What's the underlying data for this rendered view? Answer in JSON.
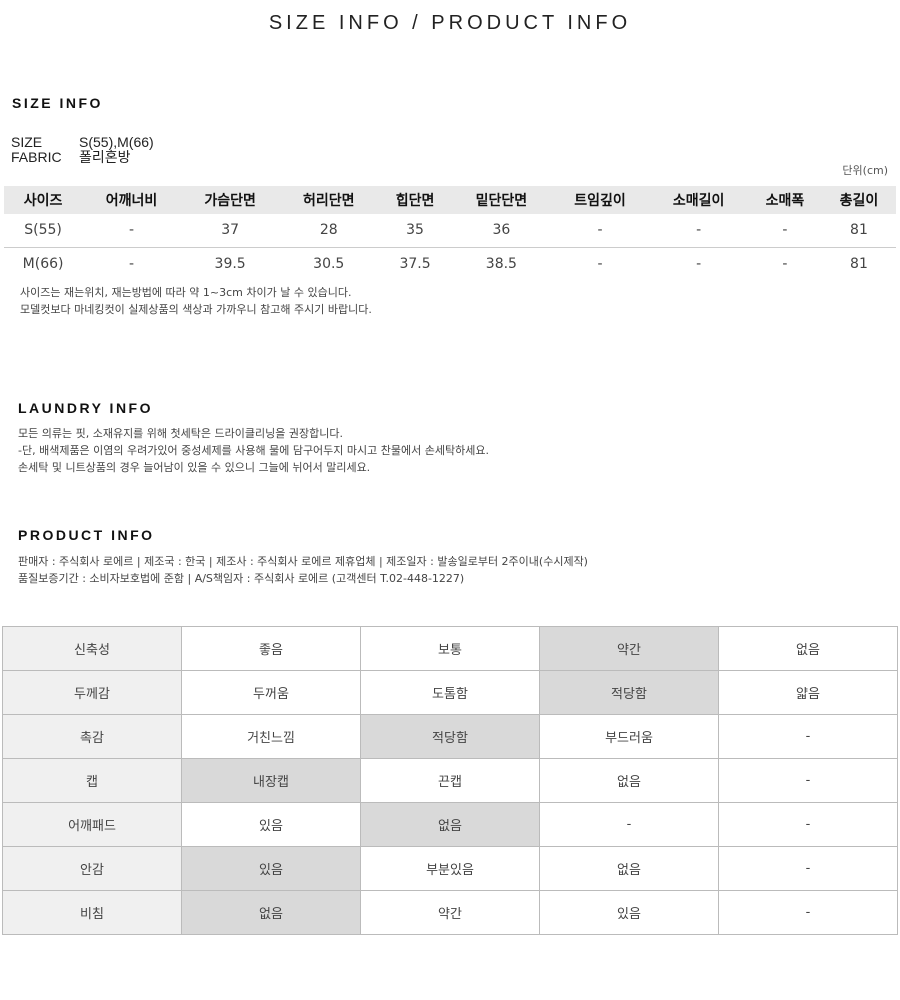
{
  "title": "SIZE INFO / PRODUCT INFO",
  "size_info": {
    "heading": "SIZE INFO",
    "size_label": "SIZE",
    "size_value": "S(55),M(66)",
    "fabric_label": "FABRIC",
    "fabric_value": "폴리혼방",
    "unit": "단위(cm)",
    "columns": [
      "사이즈",
      "어깨너비",
      "가슴단면",
      "허리단면",
      "힙단면",
      "밑단단면",
      "트임깊이",
      "소매길이",
      "소매폭",
      "총길이"
    ],
    "rows": [
      [
        "S(55)",
        "-",
        "37",
        "28",
        "35",
        "36",
        "-",
        "-",
        "-",
        "81"
      ],
      [
        "M(66)",
        "-",
        "39.5",
        "30.5",
        "37.5",
        "38.5",
        "-",
        "-",
        "-",
        "81"
      ]
    ],
    "notes": [
      "사이즈는 재는위치, 재는방법에 따라 약 1~3cm 차이가 날 수 있습니다.",
      "모델컷보다 마네킹컷이 실제상품의 색상과 가까우니 참고해 주시기 바랍니다."
    ]
  },
  "laundry_info": {
    "heading": "LAUNDRY INFO",
    "lines": [
      "모든 의류는 핏, 소재유지를 위해 첫세탁은 드라이클리닝을 권장합니다.",
      "-단, 배색제품은 이염의 우려가있어 중성세제를 사용해 물에 담구어두지 마시고 찬물에서 손세탁하세요.",
      "손세탁 및 니트상품의 경우 늘어남이 있을 수 있으니 그늘에 뉘어서 말리세요."
    ]
  },
  "product_info": {
    "heading": "PRODUCT INFO",
    "lines": [
      "판매자 : 주식회사 로에르 | 제조국 : 한국 | 제조사 : 주식회사 로에르 제휴업체 | 제조일자 : 발송일로부터 2주이내(수시제작)",
      "품질보증기간 : 소비자보호법에 준함 | A/S책임자 : 주식회사 로에르 (고객센터 T.02-448-1227)"
    ]
  },
  "attributes": [
    {
      "label": "신축성",
      "options": [
        "좋음",
        "보통",
        "약간",
        "없음"
      ],
      "selected": 2
    },
    {
      "label": "두께감",
      "options": [
        "두꺼움",
        "도톰함",
        "적당함",
        "얇음"
      ],
      "selected": 2
    },
    {
      "label": "촉감",
      "options": [
        "거친느낌",
        "적당함",
        "부드러움",
        "-"
      ],
      "selected": 1
    },
    {
      "label": "캡",
      "options": [
        "내장캡",
        "끈캡",
        "없음",
        "-"
      ],
      "selected": 0
    },
    {
      "label": "어깨패드",
      "options": [
        "있음",
        "없음",
        "-",
        "-"
      ],
      "selected": 1
    },
    {
      "label": "안감",
      "options": [
        "있음",
        "부분있음",
        "없음",
        "-"
      ],
      "selected": 0
    },
    {
      "label": "비침",
      "options": [
        "없음",
        "약간",
        "있음",
        "-"
      ],
      "selected": 0
    }
  ],
  "colors": {
    "header_bg": "#e9e9e9",
    "label_bg": "#f0f0f0",
    "selected_bg": "#d9d9d9"
  }
}
